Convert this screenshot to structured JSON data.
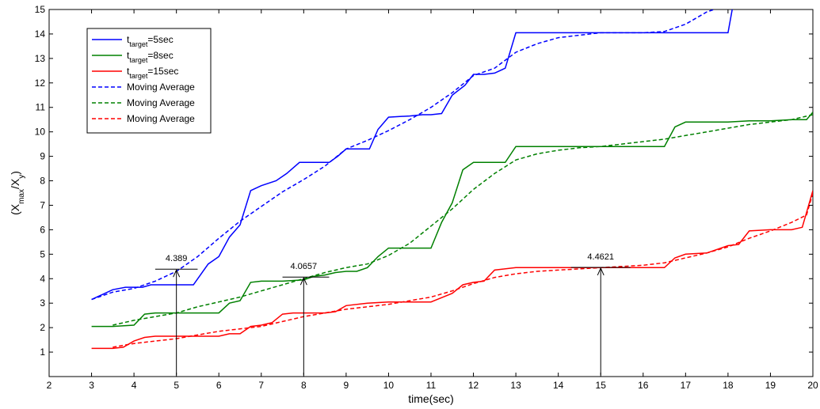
{
  "chart_data": {
    "type": "line",
    "xlabel": "time(sec)",
    "ylabel": {
      "base": "(X",
      "sub1": "max",
      "mid": "/X",
      "sub2": "y",
      "end": ")"
    },
    "xlim": [
      2,
      20
    ],
    "ylim": [
      0,
      15
    ],
    "xticks": [
      2,
      3,
      4,
      5,
      6,
      7,
      8,
      9,
      10,
      11,
      12,
      13,
      14,
      15,
      16,
      17,
      18,
      19,
      20
    ],
    "yticks": [
      1,
      2,
      3,
      4,
      5,
      6,
      7,
      8,
      9,
      10,
      11,
      12,
      13,
      14,
      15
    ],
    "grid": false,
    "legend_position": "top-left",
    "colors": {
      "blue": "#0000ff",
      "green": "#008000",
      "red": "#ff0000"
    },
    "series": [
      {
        "name": {
          "pre": "t",
          "sub": "target",
          "post": "=5sec"
        },
        "color": "#0000ff",
        "dash": false,
        "x": [
          3.0,
          3.5,
          3.8,
          4.2,
          4.4,
          4.7,
          5.0,
          5.4,
          5.75,
          6.0,
          6.25,
          6.5,
          6.75,
          7.0,
          7.35,
          7.6,
          7.9,
          8.25,
          8.6,
          8.8,
          9.0,
          9.25,
          9.55,
          9.75,
          10.0,
          10.5,
          10.8,
          11.0,
          11.25,
          11.5,
          11.8,
          12.0,
          12.25,
          12.5,
          12.75,
          13.0,
          13.5,
          14.0,
          14.5,
          15.0,
          15.5,
          16.0,
          16.5,
          17.0,
          17.5,
          18.0,
          18.1
        ],
        "y": [
          3.15,
          3.55,
          3.65,
          3.65,
          3.75,
          3.75,
          3.75,
          3.75,
          4.6,
          4.9,
          5.7,
          6.2,
          7.6,
          7.8,
          8.0,
          8.3,
          8.75,
          8.75,
          8.75,
          9.0,
          9.3,
          9.3,
          9.3,
          10.1,
          10.6,
          10.65,
          10.7,
          10.7,
          10.75,
          11.5,
          11.9,
          12.35,
          12.35,
          12.4,
          12.6,
          14.05,
          14.05,
          14.05,
          14.05,
          14.05,
          14.05,
          14.05,
          14.05,
          14.05,
          14.05,
          14.05,
          15.0
        ]
      },
      {
        "name": {
          "pre": "t",
          "sub": "target",
          "post": "=8sec"
        },
        "color": "#008000",
        "dash": false,
        "x": [
          3.0,
          3.5,
          4.0,
          4.25,
          4.5,
          5.0,
          5.5,
          6.0,
          6.25,
          6.5,
          6.75,
          7.0,
          7.5,
          8.0,
          8.25,
          8.5,
          8.75,
          9.0,
          9.25,
          9.5,
          9.75,
          10.0,
          10.5,
          11.0,
          11.25,
          11.5,
          11.75,
          12.0,
          12.5,
          12.75,
          13.0,
          13.5,
          14.0,
          14.5,
          15.0,
          15.5,
          16.0,
          16.5,
          16.75,
          17.0,
          17.5,
          18.0,
          18.5,
          19.0,
          19.5,
          19.85,
          20.0
        ],
        "y": [
          2.05,
          2.05,
          2.1,
          2.55,
          2.6,
          2.6,
          2.6,
          2.6,
          3.0,
          3.1,
          3.85,
          3.9,
          3.9,
          3.95,
          4.1,
          4.15,
          4.25,
          4.3,
          4.3,
          4.45,
          4.9,
          5.25,
          5.25,
          5.25,
          6.3,
          7.1,
          8.45,
          8.75,
          8.75,
          8.75,
          9.4,
          9.4,
          9.4,
          9.4,
          9.4,
          9.4,
          9.4,
          9.4,
          10.2,
          10.4,
          10.4,
          10.4,
          10.45,
          10.45,
          10.5,
          10.5,
          10.8
        ]
      },
      {
        "name": {
          "pre": "t",
          "sub": "target",
          "post": "=15sec"
        },
        "color": "#ff0000",
        "dash": false,
        "x": [
          3.0,
          3.5,
          3.75,
          4.0,
          4.25,
          4.5,
          5.0,
          5.5,
          6.0,
          6.25,
          6.5,
          6.75,
          7.0,
          7.25,
          7.5,
          7.75,
          8.0,
          8.5,
          8.75,
          9.0,
          9.5,
          10.0,
          10.5,
          11.0,
          11.5,
          11.75,
          12.0,
          12.25,
          12.5,
          13.0,
          13.5,
          14.0,
          14.5,
          15.0,
          15.5,
          16.0,
          16.5,
          16.75,
          17.0,
          17.5,
          18.0,
          18.25,
          18.5,
          19.0,
          19.5,
          19.75,
          20.0
        ],
        "y": [
          1.15,
          1.15,
          1.2,
          1.45,
          1.6,
          1.65,
          1.65,
          1.65,
          1.65,
          1.75,
          1.75,
          2.05,
          2.1,
          2.2,
          2.55,
          2.6,
          2.6,
          2.6,
          2.65,
          2.9,
          3.0,
          3.05,
          3.05,
          3.05,
          3.4,
          3.75,
          3.85,
          3.9,
          4.35,
          4.45,
          4.45,
          4.45,
          4.45,
          4.45,
          4.45,
          4.45,
          4.45,
          4.85,
          5.0,
          5.05,
          5.35,
          5.4,
          5.95,
          6.0,
          6.0,
          6.1,
          7.6
        ]
      },
      {
        "name": "Moving Average",
        "color": "#0000ff",
        "dash": true,
        "x": [
          3.0,
          3.5,
          4.0,
          4.5,
          5.0,
          5.5,
          6.0,
          6.5,
          7.0,
          7.5,
          8.0,
          8.5,
          9.0,
          9.5,
          10.0,
          10.5,
          11.0,
          11.5,
          12.0,
          12.5,
          13.0,
          13.5,
          14.0,
          14.5,
          15.0,
          15.5,
          16.0,
          16.5,
          17.0,
          17.5,
          18.0
        ],
        "y": [
          3.15,
          3.45,
          3.6,
          3.9,
          4.3,
          4.9,
          5.65,
          6.35,
          6.95,
          7.55,
          8.05,
          8.6,
          9.3,
          9.65,
          10.05,
          10.5,
          11.0,
          11.6,
          12.3,
          12.6,
          13.25,
          13.6,
          13.85,
          13.95,
          14.05,
          14.05,
          14.05,
          14.1,
          14.4,
          14.9,
          15.2
        ]
      },
      {
        "name": "Moving Average",
        "color": "#008000",
        "dash": true,
        "x": [
          3.5,
          4.0,
          4.5,
          5.0,
          5.5,
          6.0,
          6.5,
          7.0,
          7.5,
          8.0,
          8.5,
          9.0,
          9.5,
          10.0,
          10.5,
          11.0,
          11.5,
          12.0,
          12.5,
          13.0,
          13.5,
          14.0,
          14.5,
          15.0,
          15.5,
          16.0,
          16.5,
          17.0,
          17.5,
          18.0,
          18.5,
          19.0,
          19.5,
          20.0
        ],
        "y": [
          2.1,
          2.3,
          2.45,
          2.6,
          2.85,
          3.05,
          3.25,
          3.5,
          3.75,
          4.0,
          4.25,
          4.45,
          4.6,
          4.95,
          5.45,
          6.15,
          6.85,
          7.65,
          8.3,
          8.85,
          9.1,
          9.25,
          9.35,
          9.4,
          9.5,
          9.6,
          9.7,
          9.85,
          10.0,
          10.15,
          10.3,
          10.4,
          10.5,
          10.7
        ]
      },
      {
        "name": "Moving Average",
        "color": "#ff0000",
        "dash": true,
        "x": [
          3.5,
          4.0,
          4.5,
          5.0,
          5.5,
          6.0,
          6.5,
          7.0,
          7.5,
          8.0,
          8.5,
          9.0,
          9.5,
          10.0,
          10.5,
          11.0,
          11.5,
          12.0,
          12.5,
          13.0,
          13.5,
          14.0,
          14.5,
          15.0,
          15.5,
          16.0,
          16.5,
          17.0,
          17.5,
          18.0,
          18.5,
          19.0,
          19.5,
          19.85,
          20.0
        ],
        "y": [
          1.2,
          1.35,
          1.45,
          1.55,
          1.7,
          1.85,
          1.95,
          2.05,
          2.25,
          2.45,
          2.6,
          2.75,
          2.85,
          2.95,
          3.1,
          3.25,
          3.5,
          3.8,
          4.05,
          4.2,
          4.3,
          4.35,
          4.4,
          4.45,
          4.5,
          4.55,
          4.65,
          4.85,
          5.05,
          5.3,
          5.65,
          5.95,
          6.3,
          6.6,
          7.5
        ]
      }
    ],
    "annotations": [
      {
        "text": "4.389",
        "x": 5,
        "y": 4.389,
        "line_from": 4.5,
        "line_to": 5.5
      },
      {
        "text": "4.0657",
        "x": 8,
        "y": 4.0657,
        "line_from": 7.5,
        "line_to": 8.6
      },
      {
        "text": "4.4621",
        "x": 15,
        "y": 4.4621,
        "line_from": 14.3,
        "line_to": 15.7
      }
    ]
  }
}
